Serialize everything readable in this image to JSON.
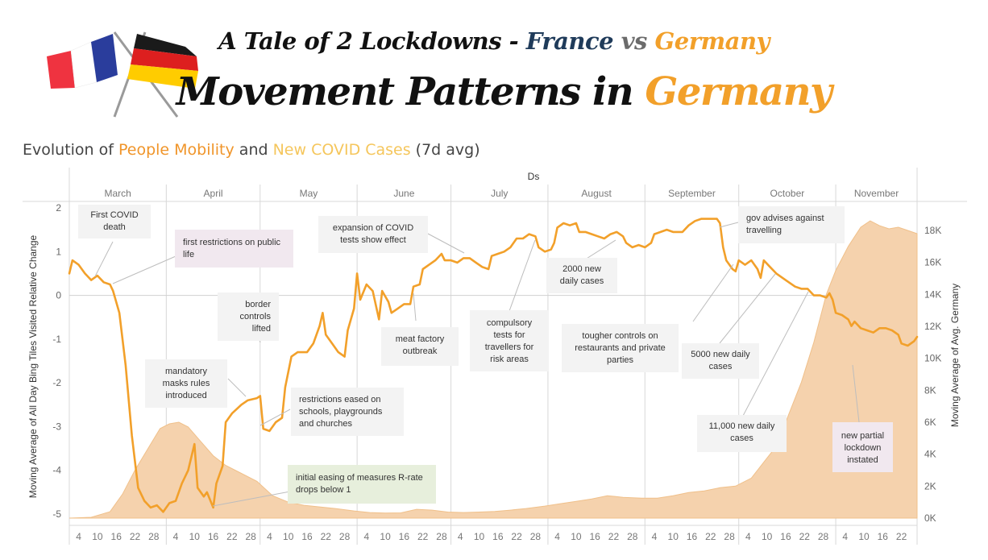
{
  "header": {
    "title_prefix": "A Tale of 2 Lockdowns - ",
    "title_france": "France",
    "title_vs": " vs ",
    "title_germany": "Germany",
    "main_prefix": "Movement Patterns in ",
    "main_country": "Germany"
  },
  "subtitle": {
    "part1": "Evolution of ",
    "mobility": "People Mobility",
    "part2": " and ",
    "cases": "New COVID Cases",
    "part3": " (7d avg)"
  },
  "colors": {
    "mobility": "#f2a02a",
    "cases_fill": "#f5d2ad",
    "cases_stroke": "#f0c08a",
    "france_blue": "#1f3b5a",
    "germany_orange": "#f2a02a"
  },
  "chart_data": {
    "type": "line",
    "x_header": "Ds",
    "months": [
      "March",
      "April",
      "May",
      "June",
      "July",
      "August",
      "September",
      "October",
      "November"
    ],
    "day_ticks": [
      "4",
      "10",
      "16",
      "22",
      "28"
    ],
    "november_day_ticks": [
      "4",
      "10",
      "16",
      "22"
    ],
    "ylabel_left": "Moving Average of All Day Bing Tiles Visited Relative Change",
    "ylabel_right": "Moving Average of Avg. Germany",
    "yticks_left": [
      "2",
      "1",
      "0",
      "-1",
      "-2",
      "-3",
      "-4",
      "-5"
    ],
    "yticks_right": [
      "18K",
      "16K",
      "14K",
      "12K",
      "10K",
      "8K",
      "6K",
      "4K",
      "2K",
      "0K"
    ],
    "ylim_left": [
      -5.3,
      2.15
    ],
    "ylim_right": [
      0,
      19000
    ],
    "start_date": "2020-03-01",
    "end_date": "2020-11-27",
    "series": [
      {
        "name": "People Mobility",
        "points": [
          [
            "2020-03-01",
            0.5
          ],
          [
            "2020-03-02",
            0.8
          ],
          [
            "2020-03-04",
            0.7
          ],
          [
            "2020-03-06",
            0.5
          ],
          [
            "2020-03-08",
            0.35
          ],
          [
            "2020-03-10",
            0.45
          ],
          [
            "2020-03-12",
            0.3
          ],
          [
            "2020-03-14",
            0.25
          ],
          [
            "2020-03-15",
            0.1
          ],
          [
            "2020-03-17",
            -0.4
          ],
          [
            "2020-03-19",
            -1.6
          ],
          [
            "2020-03-21",
            -3.2
          ],
          [
            "2020-03-23",
            -4.4
          ],
          [
            "2020-03-25",
            -4.7
          ],
          [
            "2020-03-27",
            -4.85
          ],
          [
            "2020-03-29",
            -4.8
          ],
          [
            "2020-03-31",
            -4.95
          ],
          [
            "2020-04-02",
            -4.75
          ],
          [
            "2020-04-04",
            -4.7
          ],
          [
            "2020-04-06",
            -4.3
          ],
          [
            "2020-04-08",
            -4.0
          ],
          [
            "2020-04-10",
            -3.4
          ],
          [
            "2020-04-11",
            -4.4
          ],
          [
            "2020-04-13",
            -4.6
          ],
          [
            "2020-04-14",
            -4.5
          ],
          [
            "2020-04-16",
            -4.85
          ],
          [
            "2020-04-17",
            -4.3
          ],
          [
            "2020-04-19",
            -3.9
          ],
          [
            "2020-04-20",
            -2.9
          ],
          [
            "2020-04-22",
            -2.7
          ],
          [
            "2020-04-25",
            -2.5
          ],
          [
            "2020-04-27",
            -2.4
          ],
          [
            "2020-04-30",
            -2.35
          ],
          [
            "2020-05-01",
            -2.3
          ],
          [
            "2020-05-02",
            -3.05
          ],
          [
            "2020-05-04",
            -3.1
          ],
          [
            "2020-05-06",
            -2.9
          ],
          [
            "2020-05-08",
            -2.8
          ],
          [
            "2020-05-09",
            -2.1
          ],
          [
            "2020-05-11",
            -1.4
          ],
          [
            "2020-05-13",
            -1.3
          ],
          [
            "2020-05-16",
            -1.3
          ],
          [
            "2020-05-18",
            -1.1
          ],
          [
            "2020-05-20",
            -0.7
          ],
          [
            "2020-05-21",
            -0.4
          ],
          [
            "2020-05-22",
            -0.9
          ],
          [
            "2020-05-24",
            -1.1
          ],
          [
            "2020-05-26",
            -1.3
          ],
          [
            "2020-05-28",
            -1.4
          ],
          [
            "2020-05-29",
            -0.8
          ],
          [
            "2020-05-31",
            -0.3
          ],
          [
            "2020-06-01",
            0.5
          ],
          [
            "2020-06-02",
            -0.1
          ],
          [
            "2020-06-04",
            0.25
          ],
          [
            "2020-06-06",
            0.1
          ],
          [
            "2020-06-08",
            -0.55
          ],
          [
            "2020-06-09",
            0.1
          ],
          [
            "2020-06-11",
            -0.15
          ],
          [
            "2020-06-12",
            -0.4
          ],
          [
            "2020-06-14",
            -0.3
          ],
          [
            "2020-06-16",
            -0.2
          ],
          [
            "2020-06-18",
            -0.2
          ],
          [
            "2020-06-19",
            0.2
          ],
          [
            "2020-06-21",
            0.25
          ],
          [
            "2020-06-22",
            0.6
          ],
          [
            "2020-06-24",
            0.7
          ],
          [
            "2020-06-26",
            0.8
          ],
          [
            "2020-06-28",
            0.95
          ],
          [
            "2020-06-29",
            0.8
          ],
          [
            "2020-07-01",
            0.8
          ],
          [
            "2020-07-03",
            0.75
          ],
          [
            "2020-07-05",
            0.85
          ],
          [
            "2020-07-07",
            0.85
          ],
          [
            "2020-07-09",
            0.75
          ],
          [
            "2020-07-11",
            0.65
          ],
          [
            "2020-07-13",
            0.6
          ],
          [
            "2020-07-14",
            0.9
          ],
          [
            "2020-07-16",
            0.95
          ],
          [
            "2020-07-18",
            1.0
          ],
          [
            "2020-07-20",
            1.1
          ],
          [
            "2020-07-22",
            1.3
          ],
          [
            "2020-07-24",
            1.3
          ],
          [
            "2020-07-26",
            1.4
          ],
          [
            "2020-07-28",
            1.35
          ],
          [
            "2020-07-29",
            1.1
          ],
          [
            "2020-07-31",
            1.0
          ],
          [
            "2020-08-02",
            1.05
          ],
          [
            "2020-08-03",
            1.2
          ],
          [
            "2020-08-04",
            1.55
          ],
          [
            "2020-08-06",
            1.65
          ],
          [
            "2020-08-08",
            1.6
          ],
          [
            "2020-08-10",
            1.65
          ],
          [
            "2020-08-11",
            1.45
          ],
          [
            "2020-08-13",
            1.45
          ],
          [
            "2020-08-15",
            1.4
          ],
          [
            "2020-08-17",
            1.35
          ],
          [
            "2020-08-19",
            1.3
          ],
          [
            "2020-08-21",
            1.4
          ],
          [
            "2020-08-23",
            1.45
          ],
          [
            "2020-08-25",
            1.35
          ],
          [
            "2020-08-26",
            1.2
          ],
          [
            "2020-08-28",
            1.1
          ],
          [
            "2020-08-30",
            1.15
          ],
          [
            "2020-09-01",
            1.1
          ],
          [
            "2020-09-03",
            1.2
          ],
          [
            "2020-09-04",
            1.4
          ],
          [
            "2020-09-06",
            1.45
          ],
          [
            "2020-09-08",
            1.5
          ],
          [
            "2020-09-10",
            1.45
          ],
          [
            "2020-09-13",
            1.45
          ],
          [
            "2020-09-15",
            1.6
          ],
          [
            "2020-09-17",
            1.7
          ],
          [
            "2020-09-19",
            1.75
          ],
          [
            "2020-09-22",
            1.75
          ],
          [
            "2020-09-24",
            1.75
          ],
          [
            "2020-09-25",
            1.65
          ],
          [
            "2020-09-26",
            1.1
          ],
          [
            "2020-09-27",
            0.8
          ],
          [
            "2020-09-29",
            0.6
          ],
          [
            "2020-09-30",
            0.55
          ],
          [
            "2020-10-01",
            0.8
          ],
          [
            "2020-10-03",
            0.7
          ],
          [
            "2020-10-05",
            0.8
          ],
          [
            "2020-10-07",
            0.6
          ],
          [
            "2020-10-08",
            0.4
          ],
          [
            "2020-10-09",
            0.8
          ],
          [
            "2020-10-11",
            0.65
          ],
          [
            "2020-10-13",
            0.5
          ],
          [
            "2020-10-15",
            0.4
          ],
          [
            "2020-10-17",
            0.3
          ],
          [
            "2020-10-19",
            0.2
          ],
          [
            "2020-10-21",
            0.15
          ],
          [
            "2020-10-23",
            0.15
          ],
          [
            "2020-10-25",
            0.0
          ],
          [
            "2020-10-27",
            0.0
          ],
          [
            "2020-10-29",
            -0.05
          ],
          [
            "2020-10-30",
            0.05
          ],
          [
            "2020-10-31",
            -0.1
          ],
          [
            "2020-11-01",
            -0.4
          ],
          [
            "2020-11-03",
            -0.45
          ],
          [
            "2020-11-05",
            -0.55
          ],
          [
            "2020-11-06",
            -0.7
          ],
          [
            "2020-11-07",
            -0.6
          ],
          [
            "2020-11-09",
            -0.75
          ],
          [
            "2020-11-11",
            -0.8
          ],
          [
            "2020-11-13",
            -0.85
          ],
          [
            "2020-11-15",
            -0.75
          ],
          [
            "2020-11-17",
            -0.75
          ],
          [
            "2020-11-19",
            -0.8
          ],
          [
            "2020-11-21",
            -0.9
          ],
          [
            "2020-11-22",
            -1.1
          ],
          [
            "2020-11-24",
            -1.15
          ],
          [
            "2020-11-26",
            -1.05
          ],
          [
            "2020-11-27",
            -0.95
          ]
        ]
      },
      {
        "name": "New COVID Cases",
        "points": [
          [
            "2020-03-01",
            0
          ],
          [
            "2020-03-08",
            50
          ],
          [
            "2020-03-14",
            400
          ],
          [
            "2020-03-18",
            1500
          ],
          [
            "2020-03-22",
            3000
          ],
          [
            "2020-03-26",
            4300
          ],
          [
            "2020-03-30",
            5600
          ],
          [
            "2020-04-02",
            5900
          ],
          [
            "2020-04-05",
            6000
          ],
          [
            "2020-04-08",
            5700
          ],
          [
            "2020-04-12",
            4800
          ],
          [
            "2020-04-16",
            3900
          ],
          [
            "2020-04-20",
            3300
          ],
          [
            "2020-04-25",
            2800
          ],
          [
            "2020-04-30",
            2300
          ],
          [
            "2020-05-05",
            1400
          ],
          [
            "2020-05-10",
            1000
          ],
          [
            "2020-05-15",
            800
          ],
          [
            "2020-05-20",
            700
          ],
          [
            "2020-05-25",
            600
          ],
          [
            "2020-05-31",
            450
          ],
          [
            "2020-06-05",
            350
          ],
          [
            "2020-06-10",
            320
          ],
          [
            "2020-06-15",
            330
          ],
          [
            "2020-06-20",
            550
          ],
          [
            "2020-06-25",
            500
          ],
          [
            "2020-06-30",
            380
          ],
          [
            "2020-07-05",
            350
          ],
          [
            "2020-07-10",
            380
          ],
          [
            "2020-07-15",
            420
          ],
          [
            "2020-07-20",
            500
          ],
          [
            "2020-07-25",
            600
          ],
          [
            "2020-07-31",
            750
          ],
          [
            "2020-08-05",
            900
          ],
          [
            "2020-08-10",
            1050
          ],
          [
            "2020-08-15",
            1200
          ],
          [
            "2020-08-20",
            1400
          ],
          [
            "2020-08-25",
            1300
          ],
          [
            "2020-08-31",
            1250
          ],
          [
            "2020-09-05",
            1250
          ],
          [
            "2020-09-10",
            1400
          ],
          [
            "2020-09-15",
            1600
          ],
          [
            "2020-09-20",
            1700
          ],
          [
            "2020-09-25",
            1900
          ],
          [
            "2020-09-30",
            2000
          ],
          [
            "2020-10-05",
            2500
          ],
          [
            "2020-10-09",
            3500
          ],
          [
            "2020-10-13",
            4500
          ],
          [
            "2020-10-17",
            6500
          ],
          [
            "2020-10-21",
            8500
          ],
          [
            "2020-10-25",
            11000
          ],
          [
            "2020-10-29",
            14000
          ],
          [
            "2020-11-01",
            15500
          ],
          [
            "2020-11-05",
            17000
          ],
          [
            "2020-11-09",
            18200
          ],
          [
            "2020-11-12",
            18600
          ],
          [
            "2020-11-15",
            18300
          ],
          [
            "2020-11-18",
            18100
          ],
          [
            "2020-11-21",
            18200
          ],
          [
            "2020-11-24",
            18000
          ],
          [
            "2020-11-27",
            17800
          ]
        ]
      }
    ],
    "legend": "none",
    "grid": false
  },
  "annotations": [
    {
      "id": "first-death",
      "text": "First COVID death"
    },
    {
      "id": "first-restrictions",
      "text": "first restrictions on public life"
    },
    {
      "id": "masks",
      "text": "mandatory masks rules introduced"
    },
    {
      "id": "border",
      "text": "border controls lifted"
    },
    {
      "id": "restrictions-eased",
      "text": "restrictions eased on schools, playgrounds and churches"
    },
    {
      "id": "initial-easing",
      "text": "initial easing of measures R-rate drops below 1"
    },
    {
      "id": "expansion-tests",
      "text": "expansion of COVID tests show effect"
    },
    {
      "id": "meat-factory",
      "text": "meat factory outbreak"
    },
    {
      "id": "compulsory-tests",
      "text": "compulsory tests for travellers for risk areas"
    },
    {
      "id": "2000-cases",
      "text": "2000 new daily cases"
    },
    {
      "id": "tougher-controls",
      "text": "tougher controls on restaurants and private parties"
    },
    {
      "id": "gov-advises",
      "text": "gov advises against travelling"
    },
    {
      "id": "5000-cases",
      "text": "5000 new daily cases"
    },
    {
      "id": "11000-cases",
      "text": "11,000 new daily cases"
    },
    {
      "id": "partial-lockdown",
      "text": "new partial lockdown instated"
    }
  ]
}
